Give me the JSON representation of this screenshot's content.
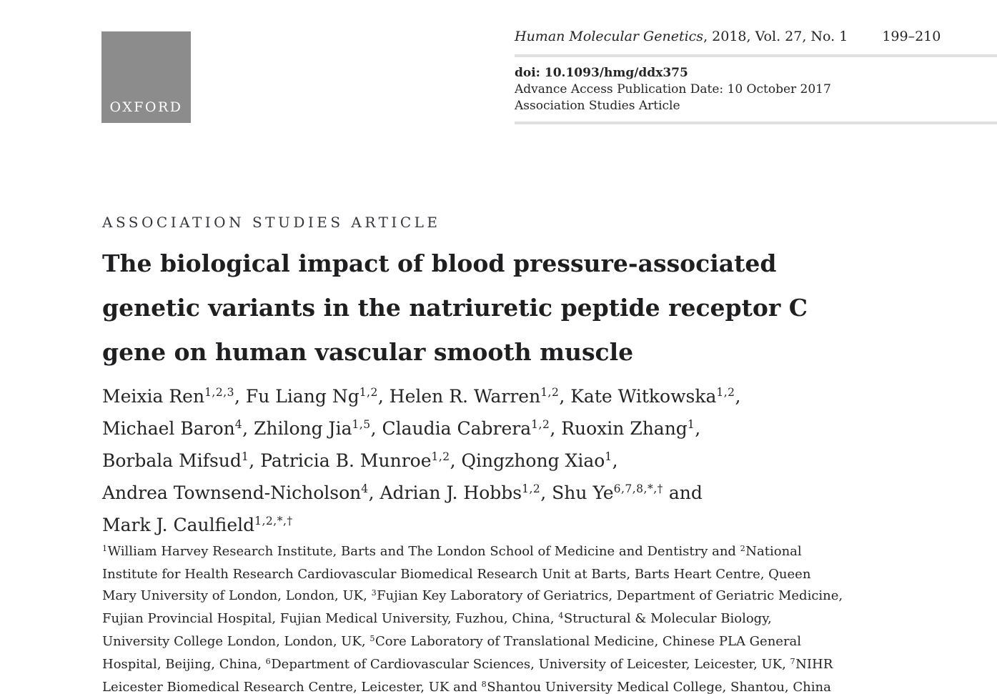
{
  "colors": {
    "page_bg": "#ffffff",
    "text": "#242427",
    "title": "#1f1f22",
    "rule": "#e0e0e0",
    "logo_bg": "#8c8c8c",
    "logo_text": "#ffffff",
    "label": "#35353c"
  },
  "header": {
    "logo_text": "OXFORD",
    "journal_line_rich": [
      {
        "t": "i",
        "v": "Human Molecular Genetics"
      },
      {
        "t": "text",
        "v": ", 2018, Vol. 27, No. 1"
      }
    ],
    "page_range": "199–210",
    "doi": "doi: 10.1093/hmg/ddx375",
    "advance_access": "Advance Access Publication Date: 10 October 2017",
    "article_type": "Association Studies Article"
  },
  "article": {
    "section_label": "ASSOCIATION STUDIES ARTICLE",
    "title_rich": [
      {
        "t": "text",
        "v": "The biological impact of blood pressure-associated"
      },
      {
        "t": "br"
      },
      {
        "t": "text",
        "v": "genetic variants in the natriuretic peptide receptor C"
      },
      {
        "t": "br"
      },
      {
        "t": "text",
        "v": "gene on human vascular smooth muscle"
      }
    ],
    "authors_rich": [
      {
        "t": "text",
        "v": "Meixia Ren"
      },
      {
        "t": "sup",
        "v": "1,2,3"
      },
      {
        "t": "text",
        "v": ", Fu Liang Ng"
      },
      {
        "t": "sup",
        "v": "1,2"
      },
      {
        "t": "text",
        "v": ", Helen R. Warren"
      },
      {
        "t": "sup",
        "v": "1,2"
      },
      {
        "t": "text",
        "v": ", Kate Witkowska"
      },
      {
        "t": "sup",
        "v": "1,2"
      },
      {
        "t": "text",
        "v": ","
      },
      {
        "t": "br"
      },
      {
        "t": "text",
        "v": "Michael Baron"
      },
      {
        "t": "sup",
        "v": "4"
      },
      {
        "t": "text",
        "v": ", Zhilong Jia"
      },
      {
        "t": "sup",
        "v": "1,5"
      },
      {
        "t": "text",
        "v": ", Claudia Cabrera"
      },
      {
        "t": "sup",
        "v": "1,2"
      },
      {
        "t": "text",
        "v": ", Ruoxin Zhang"
      },
      {
        "t": "sup",
        "v": "1"
      },
      {
        "t": "text",
        "v": ","
      },
      {
        "t": "br"
      },
      {
        "t": "text",
        "v": "Borbala Mifsud"
      },
      {
        "t": "sup",
        "v": "1"
      },
      {
        "t": "text",
        "v": ", Patricia B. Munroe"
      },
      {
        "t": "sup",
        "v": "1,2"
      },
      {
        "t": "text",
        "v": ", Qingzhong Xiao"
      },
      {
        "t": "sup",
        "v": "1"
      },
      {
        "t": "text",
        "v": ","
      },
      {
        "t": "br"
      },
      {
        "t": "text",
        "v": "Andrea Townsend-Nicholson"
      },
      {
        "t": "sup",
        "v": "4"
      },
      {
        "t": "text",
        "v": ", Adrian J. Hobbs"
      },
      {
        "t": "sup",
        "v": "1,2"
      },
      {
        "t": "text",
        "v": ", Shu Ye"
      },
      {
        "t": "sup",
        "v": "6,7,8,*,†"
      },
      {
        "t": "text",
        "v": " and"
      },
      {
        "t": "br"
      },
      {
        "t": "text",
        "v": "Mark J. Caulfield"
      },
      {
        "t": "sup",
        "v": "1,2,*,†"
      }
    ],
    "affiliations_rich": [
      {
        "t": "sup",
        "v": "1"
      },
      {
        "t": "text",
        "v": "William Harvey Research Institute, Barts and The London School of Medicine and Dentistry and "
      },
      {
        "t": "sup",
        "v": "2"
      },
      {
        "t": "text",
        "v": "National"
      },
      {
        "t": "br"
      },
      {
        "t": "text",
        "v": "Institute for Health Research Cardiovascular Biomedical Research Unit at Barts, Barts Heart Centre, Queen"
      },
      {
        "t": "br"
      },
      {
        "t": "text",
        "v": "Mary University of London, London, UK, "
      },
      {
        "t": "sup",
        "v": "3"
      },
      {
        "t": "text",
        "v": "Fujian Key Laboratory of Geriatrics, Department of Geriatric Medicine,"
      },
      {
        "t": "br"
      },
      {
        "t": "text",
        "v": "Fujian Provincial Hospital, Fujian Medical University, Fuzhou, China, "
      },
      {
        "t": "sup",
        "v": "4"
      },
      {
        "t": "text",
        "v": "Structural & Molecular Biology,"
      },
      {
        "t": "br"
      },
      {
        "t": "text",
        "v": "University College London, London, UK, "
      },
      {
        "t": "sup",
        "v": "5"
      },
      {
        "t": "text",
        "v": "Core Laboratory of Translational Medicine, Chinese PLA General"
      },
      {
        "t": "br"
      },
      {
        "t": "text",
        "v": "Hospital, Beijing, China, "
      },
      {
        "t": "sup",
        "v": "6"
      },
      {
        "t": "text",
        "v": "Department of Cardiovascular Sciences, University of Leicester, Leicester, UK, "
      },
      {
        "t": "sup",
        "v": "7"
      },
      {
        "t": "text",
        "v": "NIHR"
      },
      {
        "t": "br"
      },
      {
        "t": "text",
        "v": "Leicester Biomedical Research Centre, Leicester, UK and "
      },
      {
        "t": "sup",
        "v": "8"
      },
      {
        "t": "text",
        "v": "Shantou University Medical College, Shantou, China"
      }
    ]
  }
}
